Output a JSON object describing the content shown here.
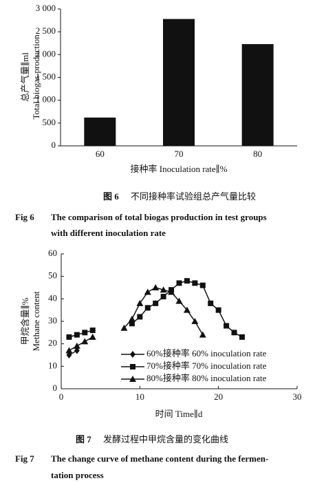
{
  "chart_data": [
    {
      "type": "bar",
      "ylabel_cn": "总产气量∥ml",
      "ylabel_en": "Total biogas production",
      "xlabel": "接种率 Inoculation rate∥%",
      "categories": [
        "60",
        "70",
        "80"
      ],
      "values": [
        620,
        2780,
        2230
      ],
      "color": "#111111",
      "ylim": [
        0,
        3000
      ],
      "yticks": [
        0,
        500,
        {
          "value": 1000,
          "label": "1 000"
        },
        {
          "value": 1500,
          "label": "1 500"
        },
        {
          "value": 2000,
          "label": "2 000"
        },
        {
          "value": 2500,
          "label": "2 500"
        },
        {
          "value": 3000,
          "label": "3 000"
        }
      ],
      "caption_label_cn": "图 6",
      "caption_cn": "不同接种率试验组总产气量比较",
      "caption_label_en": "Fig 6",
      "caption_en_1": "The comparison of total biogas production in test groups",
      "caption_en_2": "with different inoculation rate"
    },
    {
      "type": "line",
      "ylabel_cn": "甲烷含量∥%",
      "ylabel_en": "Methane content",
      "xlabel": "时间 Time∥d",
      "x": [
        1,
        2,
        3,
        4,
        5,
        6,
        7,
        8,
        9,
        10,
        11,
        12,
        13,
        14,
        15,
        16,
        17,
        18,
        19,
        20,
        21,
        22,
        23
      ],
      "series": [
        {
          "name": "60%接种率 60% inoculation rate",
          "marker": "diamond",
          "color": "#111111",
          "values": [
            15,
            17,
            null,
            null,
            null,
            null,
            null,
            null,
            null,
            null,
            null,
            null,
            null,
            null,
            null,
            null,
            null,
            null,
            null,
            null,
            null,
            null,
            null
          ]
        },
        {
          "name": "70%接种率 70% inoculation rate",
          "marker": "square",
          "color": "#111111",
          "values": [
            23,
            24,
            25,
            26,
            null,
            null,
            null,
            null,
            29,
            32,
            36,
            38,
            41,
            44,
            47,
            48,
            47,
            46,
            38,
            35,
            28,
            25,
            23
          ]
        },
        {
          "name": "80%接种率 80% inoculation rate",
          "marker": "triangle",
          "color": "#111111",
          "values": [
            17,
            19,
            21,
            23,
            null,
            null,
            null,
            27,
            31,
            38,
            43,
            45,
            44,
            43,
            39,
            35,
            30,
            24,
            null,
            null,
            null,
            null,
            null
          ]
        }
      ],
      "xlim": [
        0,
        30
      ],
      "xticks": [
        0,
        10,
        20,
        30
      ],
      "ylim": [
        0,
        60
      ],
      "yticks": [
        0,
        10,
        20,
        30,
        40,
        50,
        60
      ],
      "caption_label_cn": "图 7",
      "caption_cn": "发酵过程中甲烷含量的变化曲线",
      "caption_label_en": "Fig 7",
      "caption_en_1": "The change curve of methane content during the fermen-",
      "caption_en_2": "tation process"
    }
  ]
}
